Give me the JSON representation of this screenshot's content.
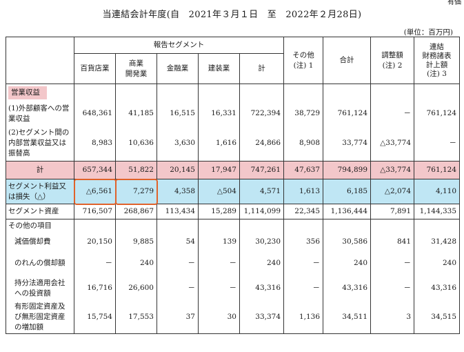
{
  "corner_text": "有価",
  "title": "当連結会計年度(自　2021年３月１日　至　2022年２月28日)",
  "unit": "(単位：百万円)",
  "headers": {
    "reporting_segment": "報告セグメント",
    "department_store": "百貨店業",
    "commercial_dev": "商業\n開発業",
    "finance": "金融業",
    "construction": "建装業",
    "subtotal": "計",
    "other": "その他\n(注) 1",
    "total": "合計",
    "adjustment": "調整額\n(注) 2",
    "consolidated": "連結\n財務諸表\n計上額\n(注) 3"
  },
  "rows": {
    "operating_revenue": {
      "label": "営業収益"
    },
    "external": {
      "label": "(1)外部顧客への営業収益",
      "values": [
        "648,361",
        "41,185",
        "16,515",
        "16,331",
        "722,394",
        "38,729",
        "761,124",
        "－",
        "761,124"
      ]
    },
    "intersegment": {
      "label": "(2)セグメント間の内部営業収益又は振替高",
      "values": [
        "8,983",
        "10,636",
        "3,630",
        "1,616",
        "24,866",
        "8,908",
        "33,774",
        "△33,774",
        "－"
      ]
    },
    "total_revenue": {
      "label": "計",
      "values": [
        "657,344",
        "51,822",
        "20,145",
        "17,947",
        "747,261",
        "47,637",
        "794,899",
        "△33,774",
        "761,124"
      ]
    },
    "segment_profit": {
      "label": "セグメント利益又は損失（△）",
      "values": [
        "△6,561",
        "7,279",
        "4,358",
        "△504",
        "4,571",
        "1,613",
        "6,185",
        "△2,074",
        "4,110"
      ]
    },
    "segment_assets": {
      "label": "セグメント資産",
      "values": [
        "716,507",
        "268,867",
        "113,434",
        "15,289",
        "1,114,099",
        "22,345",
        "1,136,444",
        "7,891",
        "1,144,335"
      ]
    },
    "other_items": {
      "label": "その他の項目"
    },
    "depreciation": {
      "label": "減価償却費",
      "values": [
        "20,150",
        "9,885",
        "54",
        "139",
        "30,230",
        "356",
        "30,586",
        "841",
        "31,428"
      ]
    },
    "goodwill": {
      "label": "のれんの償却額",
      "values": [
        "－",
        "240",
        "－",
        "－",
        "240",
        "－",
        "240",
        "－",
        "240"
      ]
    },
    "equity_investment": {
      "label": "持分法適用会社への投資額",
      "values": [
        "16,716",
        "26,600",
        "－",
        "－",
        "43,316",
        "－",
        "43,316",
        "－",
        "43,316"
      ]
    },
    "capex": {
      "label": "有形固定資産及び無形固定資産の増加額",
      "values": [
        "15,754",
        "17,553",
        "37",
        "30",
        "33,374",
        "1,136",
        "34,511",
        "3",
        "34,515"
      ]
    }
  },
  "colors": {
    "highlight_pink": "#f3c7ca",
    "highlight_blue": "#bfe6f4",
    "callout_orange": "#e0622a"
  }
}
